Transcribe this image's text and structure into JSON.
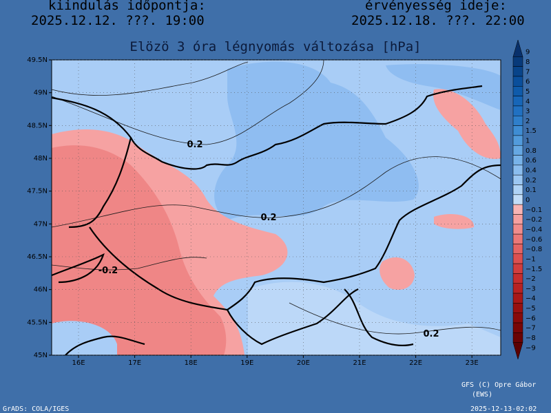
{
  "header": {
    "init_label": "kiindulás időpontja:",
    "init_time": "2025.12.12. ???. 19:00",
    "valid_label": "érvényesség ideje:",
    "valid_time": "2025.12.18. ???. 22:00"
  },
  "title": "Elözö 3 óra légnyomás változása [hPa]",
  "map": {
    "lat_ticks": [
      "49.5N",
      "49N",
      "48.5N",
      "48N",
      "47.5N",
      "47N",
      "46.5N",
      "46N",
      "45.5N",
      "45N"
    ],
    "lon_ticks": [
      "16E",
      "17E",
      "18E",
      "19E",
      "20E",
      "21E",
      "22E",
      "23E"
    ],
    "contour_labels": [
      "0.2",
      "0.2",
      "-0.2",
      "0.2"
    ]
  },
  "legend": {
    "levels": [
      {
        "label": "9",
        "color": "#08306b"
      },
      {
        "label": "8",
        "color": "#083a7a"
      },
      {
        "label": "7",
        "color": "#08448a"
      },
      {
        "label": "6",
        "color": "#0a4f9c"
      },
      {
        "label": "5",
        "color": "#0f5bab"
      },
      {
        "label": "4",
        "color": "#1766b8"
      },
      {
        "label": "3",
        "color": "#2171c2"
      },
      {
        "label": "2",
        "color": "#2f7fcb"
      },
      {
        "label": "1.5",
        "color": "#3f8dd4"
      },
      {
        "label": "1",
        "color": "#529bdc"
      },
      {
        "label": "0.8",
        "color": "#66a8e3"
      },
      {
        "label": "0.6",
        "color": "#78b3e9"
      },
      {
        "label": "0.4",
        "color": "#8bbdee"
      },
      {
        "label": "0.2",
        "color": "#9cc7f2"
      },
      {
        "label": "0.1",
        "color": "#afd3f6"
      },
      {
        "label": "0",
        "color": "#c2ddf8"
      },
      {
        "label": "−0.1",
        "color": "#f8b4b4"
      },
      {
        "label": "−0.2",
        "color": "#f5a0a0"
      },
      {
        "label": "−0.4",
        "color": "#f08c8c"
      },
      {
        "label": "−0.6",
        "color": "#eb7878"
      },
      {
        "label": "−0.8",
        "color": "#e46464"
      },
      {
        "label": "−1",
        "color": "#dc5050"
      },
      {
        "label": "−1.5",
        "color": "#d23e3e"
      },
      {
        "label": "−2",
        "color": "#c62e2e"
      },
      {
        "label": "−3",
        "color": "#b82222"
      },
      {
        "label": "−4",
        "color": "#a81818"
      },
      {
        "label": "−5",
        "color": "#981010"
      },
      {
        "label": "−6",
        "color": "#880a0a"
      },
      {
        "label": "−7",
        "color": "#780606"
      },
      {
        "label": "−8",
        "color": "#6a0303"
      },
      {
        "label": "−9",
        "color": "#5c0000"
      }
    ]
  },
  "footer": {
    "credit": "GFS (C) Opre Gábor",
    "source": "(EWS)",
    "grads": "GrADS: COLA/IGES",
    "timestamp": "2025-12-13-02:02"
  }
}
